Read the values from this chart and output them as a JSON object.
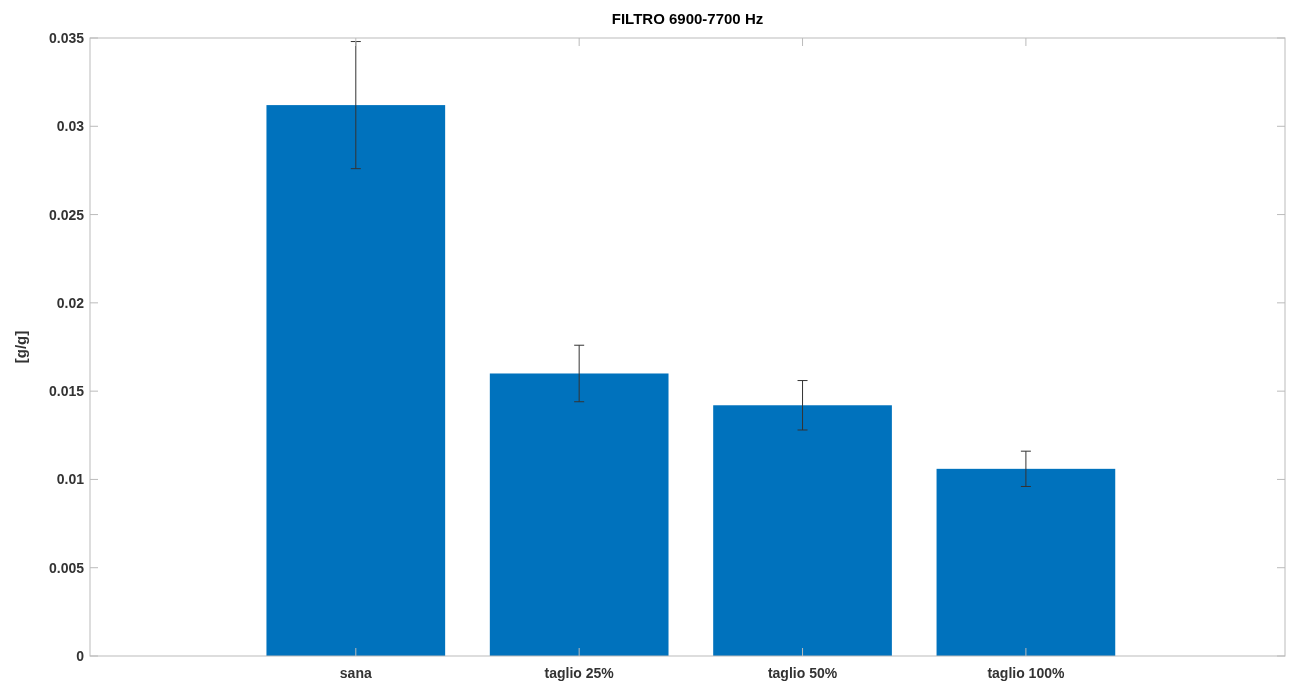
{
  "chart_data": {
    "type": "bar",
    "title": "FILTRO 6900-7700 Hz",
    "ylabel": "[g/g]",
    "categories": [
      "sana",
      "taglio 25%",
      "taglio 50%",
      "taglio 100%"
    ],
    "values": [
      0.0312,
      0.016,
      0.0142,
      0.0106
    ],
    "errors": [
      0.0036,
      0.0016,
      0.0014,
      0.001
    ],
    "color": "#0072bd",
    "ylim": [
      0,
      0.035
    ],
    "yticks": [
      0,
      0.005,
      0.01,
      0.015,
      0.02,
      0.025,
      0.03,
      0.035
    ],
    "grid": false
  }
}
